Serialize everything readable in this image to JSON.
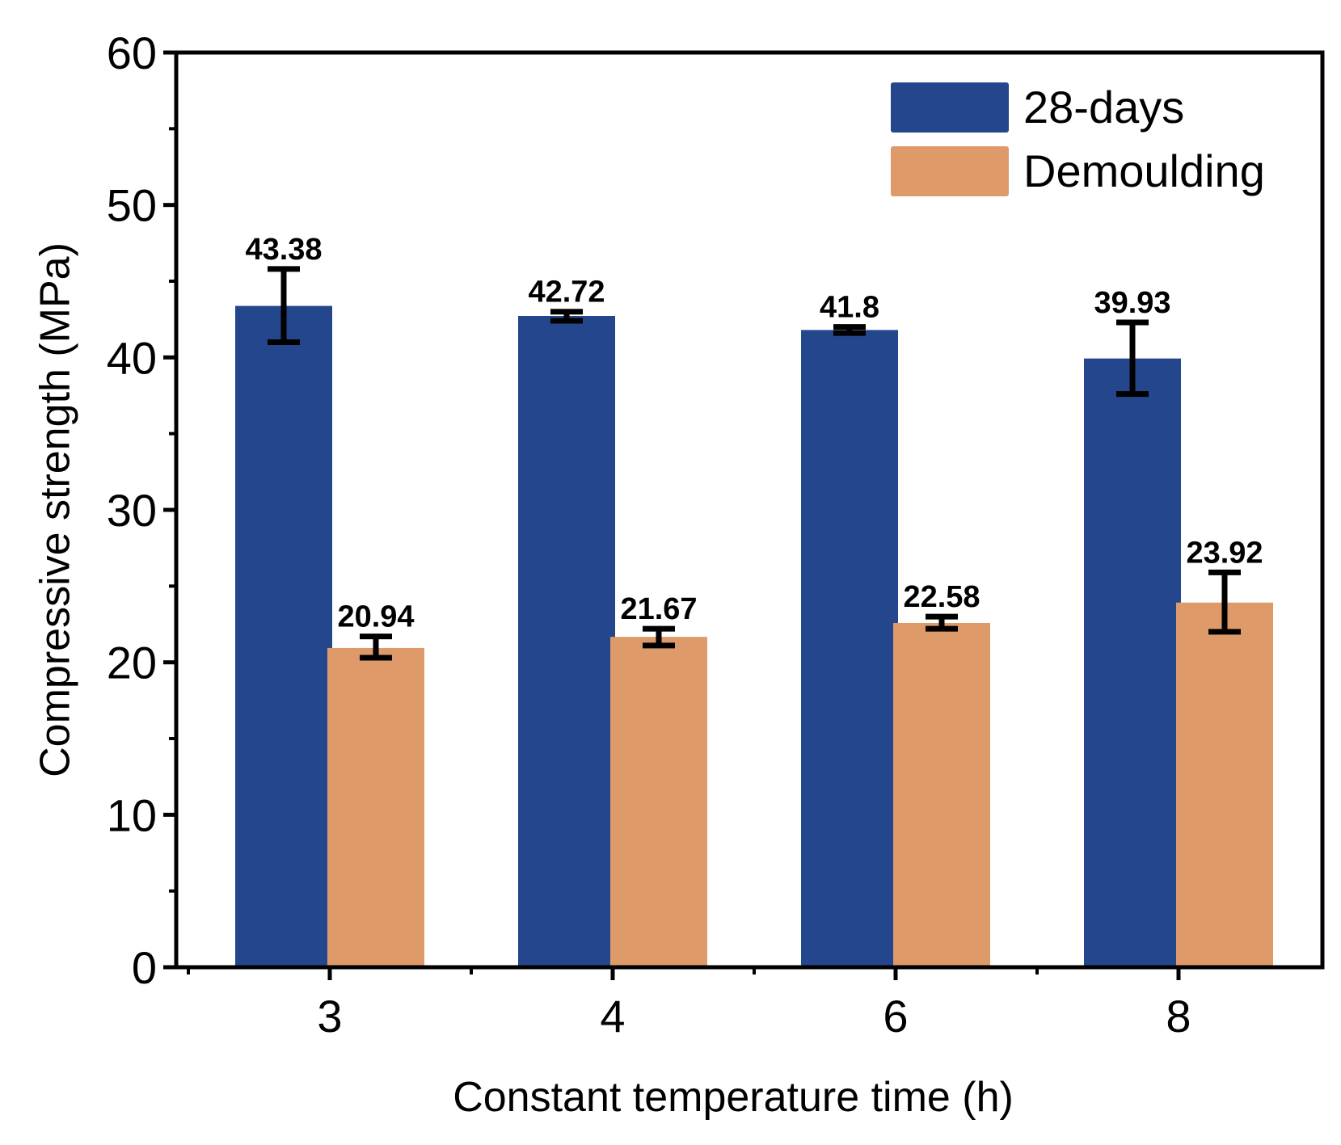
{
  "colors": {
    "28-days": "#23468c",
    "Demoulding": "#df9a6a",
    "axis": "#000000",
    "error_bar": "#000000"
  },
  "chart_data": {
    "type": "bar",
    "xlabel": "Constant temperature time (h)",
    "ylabel": "Compressive strength (MPa)",
    "categories": [
      "3",
      "4",
      "6",
      "8"
    ],
    "ylim": [
      0,
      60
    ],
    "yticks": [
      0,
      10,
      20,
      30,
      40,
      50,
      60
    ],
    "legend_position": "top-right",
    "grid": false,
    "series": [
      {
        "name": "28-days",
        "values": [
          43.38,
          42.72,
          41.8,
          39.93
        ],
        "labels": [
          "43.38",
          "42.72",
          "41.8",
          "39.93"
        ],
        "error_low": [
          41.0,
          42.4,
          41.6,
          37.6
        ],
        "error_high": [
          45.8,
          43.0,
          42.0,
          42.3
        ]
      },
      {
        "name": "Demoulding",
        "values": [
          20.94,
          21.67,
          22.58,
          23.92
        ],
        "labels": [
          "20.94",
          "21.67",
          "22.58",
          "23.92"
        ],
        "error_low": [
          20.3,
          21.1,
          22.2,
          22.0
        ],
        "error_high": [
          21.7,
          22.2,
          23.0,
          25.9
        ]
      }
    ]
  }
}
